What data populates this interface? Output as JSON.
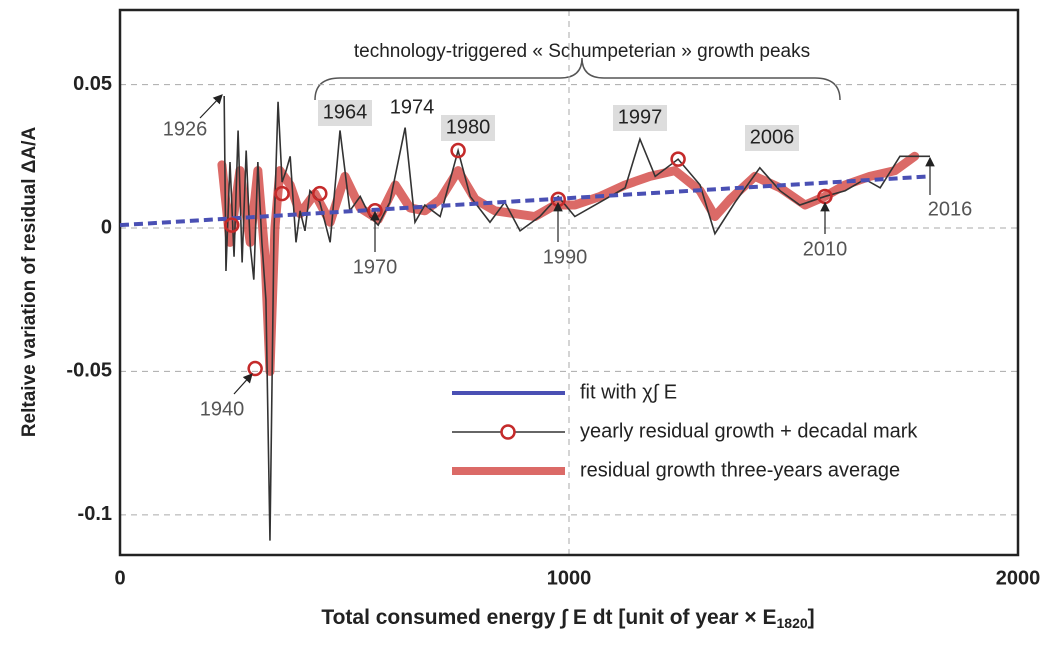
{
  "chart_data": {
    "type": "line",
    "title": "technology-triggered « Schumpeterian » growth peaks",
    "x_label": [
      "Total consumed energy  ∫ E dt   [unit of year × E",
      "1820",
      "]"
    ],
    "y_label": "Reltaive variation of residual  ΔA/A",
    "xlim": [
      0,
      2000
    ],
    "ylim": [
      -0.114,
      0.076
    ],
    "xticks": [
      0,
      1000,
      2000
    ],
    "yticks": [
      0.05,
      0,
      -0.05,
      -0.1
    ],
    "grid": true,
    "legend": "lower right",
    "series": [
      {
        "name": "fit with  χ∫ E",
        "color": "#4a50b4",
        "x": [
          0,
          1804
        ],
        "values": [
          0.001,
          0.018
        ]
      },
      {
        "name": "yearly residual growth + decadal mark",
        "color": "#333333",
        "mark_color": "#c42a2a",
        "x": [
          232,
          236,
          245,
          254,
          263,
          272,
          281,
          290,
          298,
          307,
          316,
          325,
          334,
          343,
          352,
          361,
          370,
          379,
          392,
          401,
          412,
          423,
          445,
          468,
          490,
          512,
          535,
          557,
          575,
          601,
          635,
          657,
          679,
          713,
          753,
          780,
          824,
          857,
          891,
          935,
          976,
          1013,
          1069,
          1125,
          1158,
          1192,
          1243,
          1292,
          1325,
          1370,
          1425,
          1470,
          1514,
          1570,
          1615,
          1659,
          1693,
          1737,
          1804
        ],
        "values": [
          0.046,
          -0.015,
          0.023,
          -0.01,
          0.034,
          -0.012,
          0.027,
          -0.006,
          -0.018,
          0.023,
          -0.005,
          -0.025,
          -0.109,
          -0.001,
          0.044,
          0.016,
          0.02,
          0.025,
          -0.005,
          0.006,
          -0.001,
          0.013,
          0.009,
          -0.005,
          0.034,
          0.006,
          0.011,
          0.004,
          0.001,
          0.009,
          0.035,
          0.002,
          0.008,
          0.004,
          0.027,
          0.011,
          0.002,
          0.009,
          -0.001,
          0.004,
          0.011,
          0.004,
          0.009,
          0.014,
          0.031,
          0.018,
          0.024,
          0.015,
          -0.002,
          0.009,
          0.021,
          0.013,
          0.008,
          0.011,
          0.013,
          0.017,
          0.014,
          0.025,
          0.025
        ],
        "mark_x": [
          249,
          301,
          361,
          445,
          568,
          753,
          976,
          1243,
          1570
        ],
        "mark_values": [
          0.001,
          -0.049,
          0.012,
          0.012,
          0.006,
          0.027,
          0.01,
          0.024,
          0.011
        ]
      },
      {
        "name": "residual growth three-years average",
        "color": "#d5504c",
        "x": [
          227,
          245,
          267,
          290,
          307,
          323,
          334,
          345,
          356,
          379,
          401,
          434,
          468,
          501,
          535,
          575,
          613,
          646,
          679,
          713,
          753,
          791,
          835,
          880,
          924,
          969,
          1013,
          1069,
          1125,
          1180,
          1236,
          1292,
          1325,
          1359,
          1414,
          1470,
          1526,
          1570,
          1615,
          1670,
          1726,
          1770
        ],
        "values": [
          0.022,
          -0.005,
          0.02,
          -0.005,
          0.02,
          -0.01,
          -0.05,
          0.0,
          0.02,
          0.015,
          0.005,
          0.012,
          0.002,
          0.018,
          0.007,
          0.003,
          0.015,
          0.007,
          0.006,
          0.01,
          0.02,
          0.01,
          0.006,
          0.005,
          0.004,
          0.008,
          0.008,
          0.011,
          0.015,
          0.018,
          0.02,
          0.013,
          0.004,
          0.01,
          0.018,
          0.014,
          0.008,
          0.011,
          0.015,
          0.018,
          0.02,
          0.025
        ]
      }
    ],
    "annotations": [
      "1926",
      "1964",
      "1974",
      "1980",
      "1997",
      "2006",
      "1970",
      "1990",
      "2010",
      "2016",
      "1940"
    ]
  }
}
